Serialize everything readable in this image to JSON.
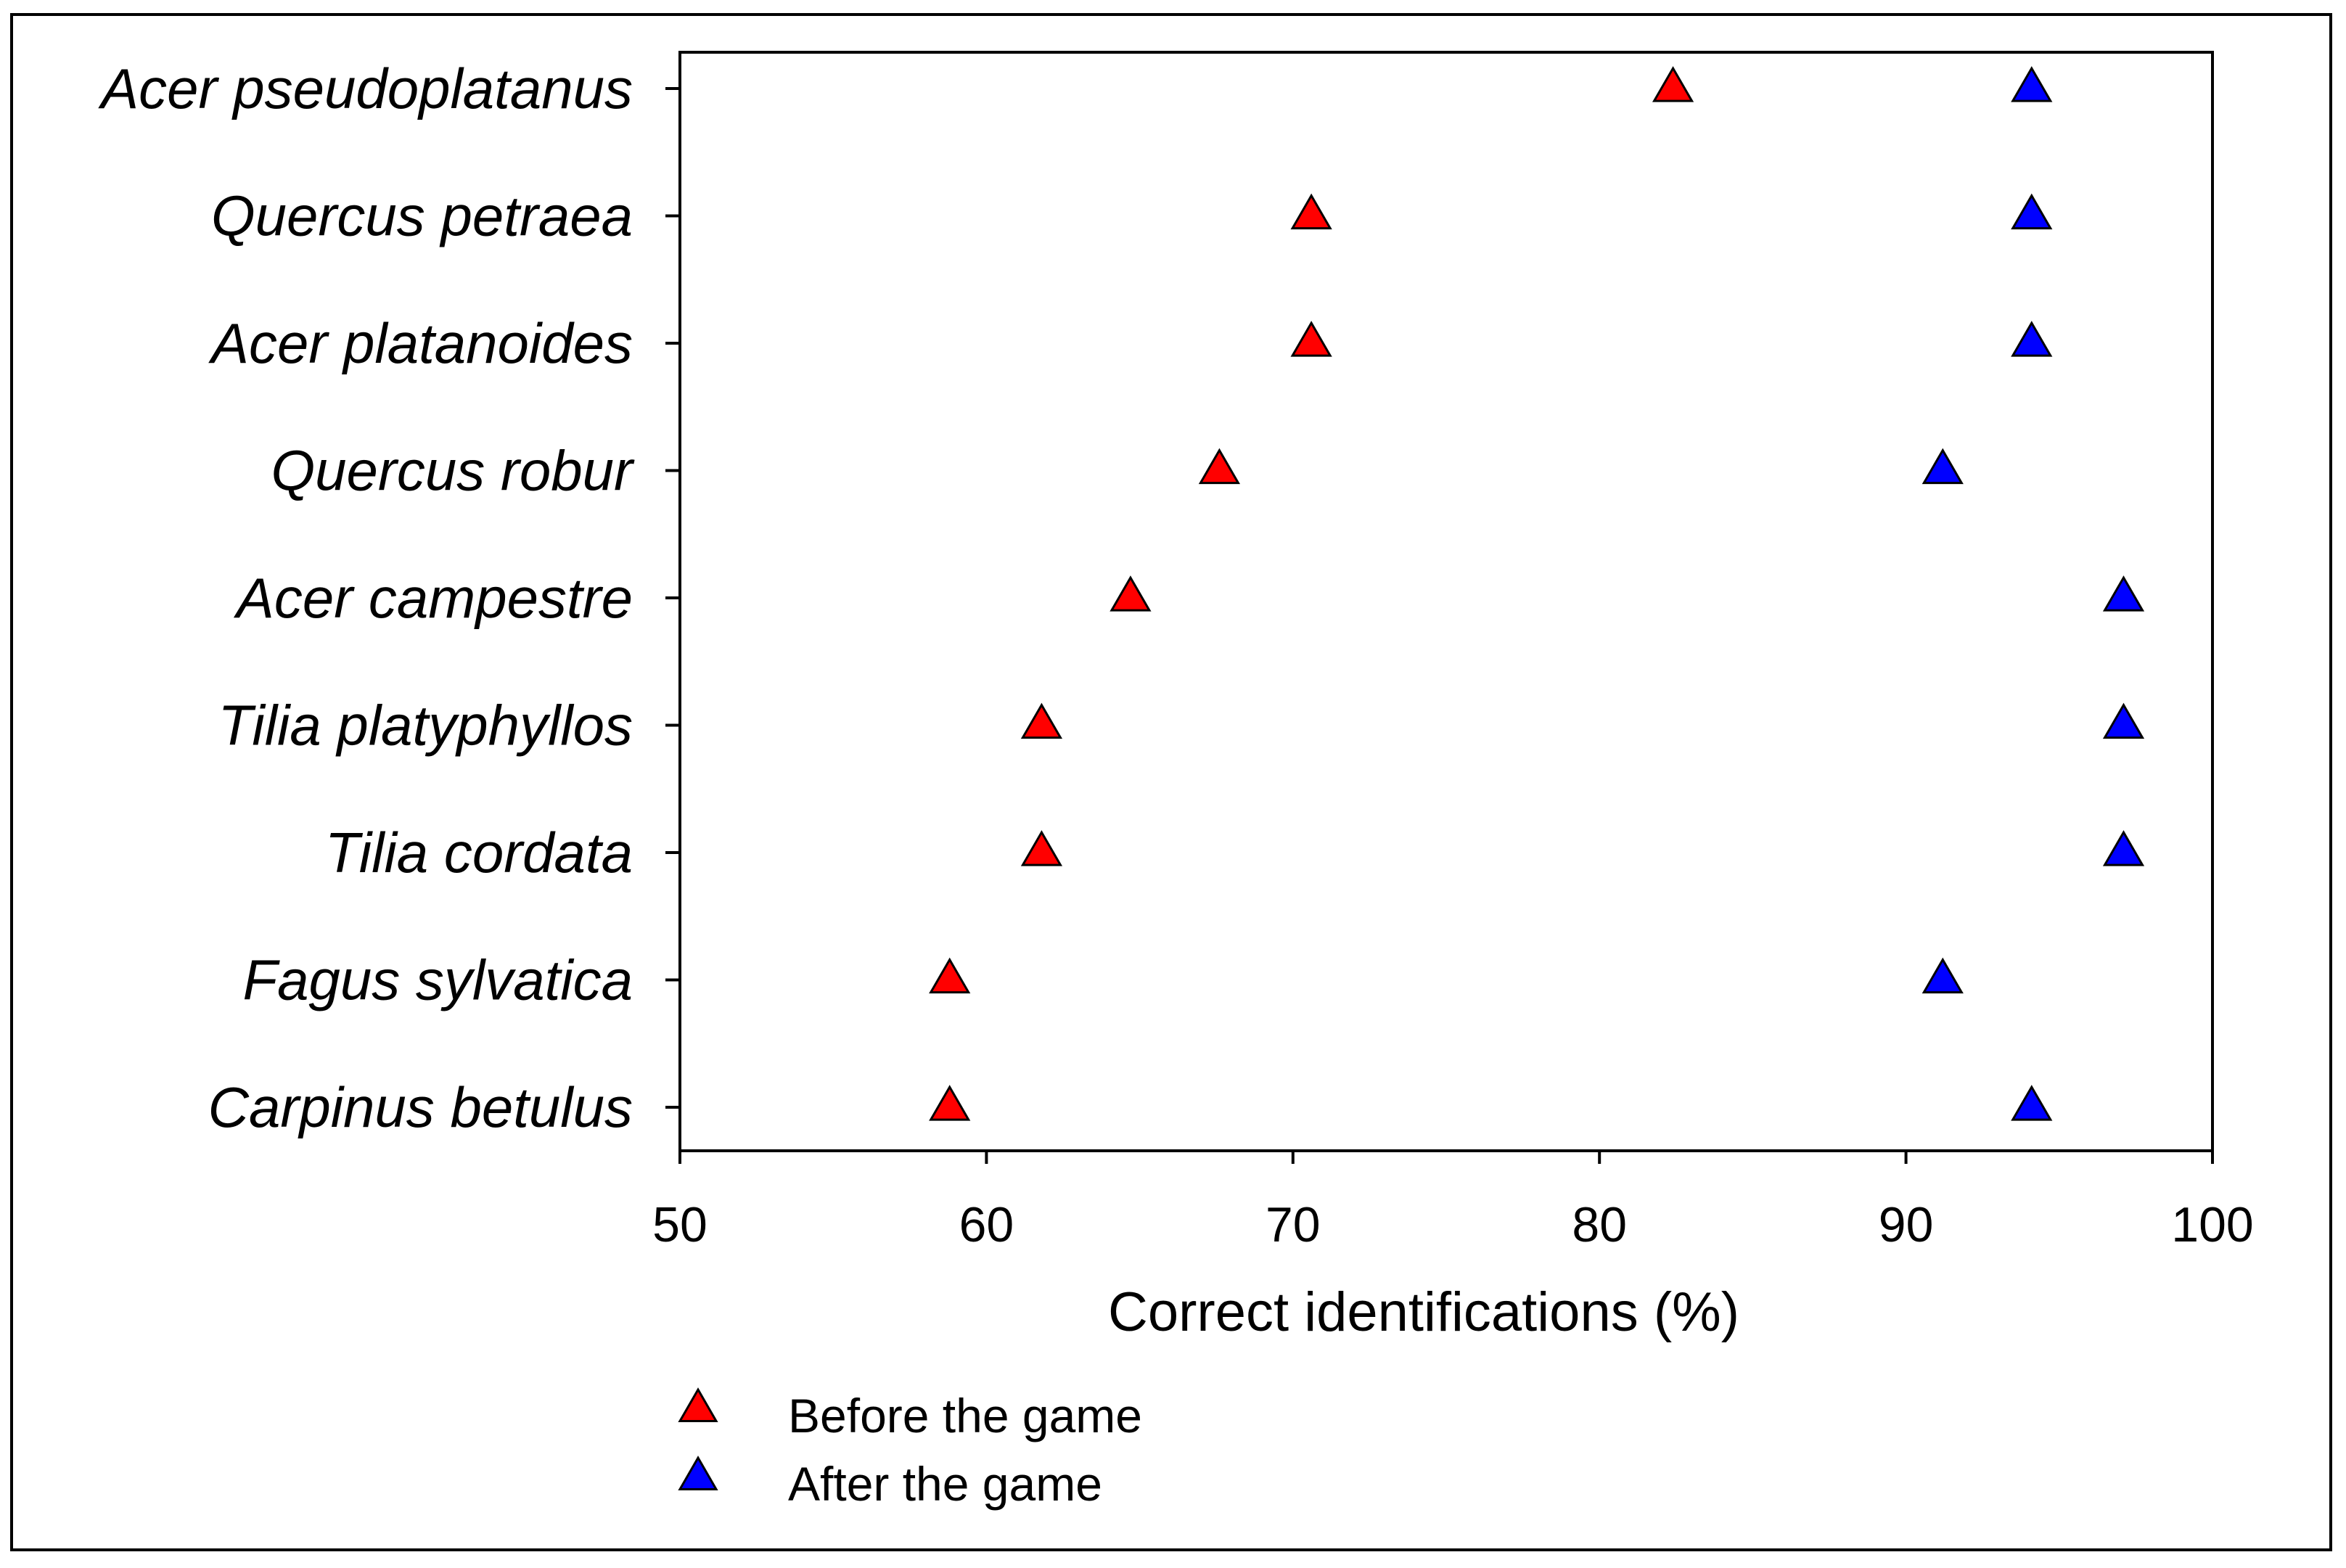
{
  "chart_data": {
    "type": "scatter",
    "orientation": "horizontal-dot-plot",
    "title": "",
    "xlabel": "Correct identifications (%)",
    "ylabel": "",
    "xlim": [
      50,
      100
    ],
    "xticks": [
      50,
      60,
      70,
      80,
      90,
      100
    ],
    "categories": [
      "Acer pseudoplatanus",
      "Quercus petraea",
      "Acer platanoides",
      "Quercus robur",
      "Acer campestre",
      "Tilia platyphyllos",
      "Tilia cordata",
      "Fagus sylvatica",
      "Carpinus betulus"
    ],
    "series": [
      {
        "name": "Before the game",
        "color": "#ff0000",
        "marker": "triangle",
        "values": [
          82.4,
          70.6,
          70.6,
          67.6,
          64.7,
          61.8,
          61.8,
          58.8,
          58.8
        ]
      },
      {
        "name": "After the game",
        "color": "#0000ff",
        "marker": "triangle",
        "values": [
          94.1,
          94.1,
          94.1,
          91.2,
          97.1,
          97.1,
          97.1,
          91.2,
          94.1
        ]
      }
    ],
    "legend": {
      "position": "bottom-left"
    }
  }
}
